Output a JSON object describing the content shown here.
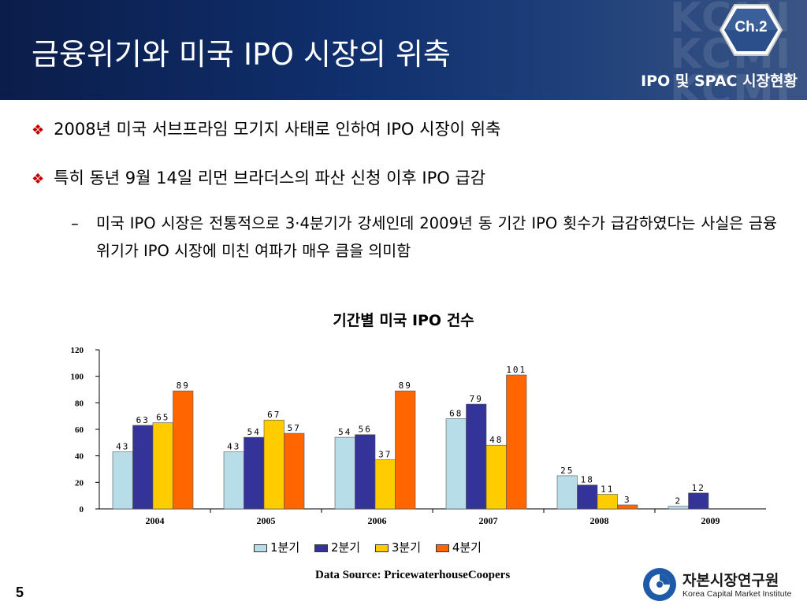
{
  "header": {
    "title": "금융위기와 미국 IPO 시장의 위축",
    "subtitle": "IPO 및 SPAC 시장현황",
    "chapter": "Ch.2",
    "watermark": "KCMI",
    "background_color": "#10306e"
  },
  "bullets": [
    {
      "icon": "diamond-bullet-icon",
      "text": "2008년 미국 서브프라임 모기지 사태로 인하여 IPO 시장이 위축"
    },
    {
      "icon": "diamond-bullet-icon",
      "text": "특히 동년 9월 14일 리먼 브라더스의 파산 신청 이후 IPO 급감"
    }
  ],
  "sub_bullet": {
    "dash": "–",
    "text": "미국 IPO 시장은 전통적으로 3·4분기가 강세인데 2009년 동 기간 IPO 횟수가 급감하였다는 사실은 금융위기가 IPO 시장에 미친 여파가 매우 큼을 의미함"
  },
  "chart_data": {
    "type": "bar",
    "title": "기간별 미국 IPO 건수",
    "categories": [
      "2004",
      "2005",
      "2006",
      "2007",
      "2008",
      "2009"
    ],
    "series": [
      {
        "name": "1분기",
        "color": "#b7dde8",
        "values": [
          43,
          43,
          54,
          68,
          25,
          2
        ]
      },
      {
        "name": "2분기",
        "color": "#333399",
        "values": [
          63,
          54,
          56,
          79,
          18,
          12
        ]
      },
      {
        "name": "3분기",
        "color": "#ffcc00",
        "values": [
          65,
          67,
          37,
          48,
          11,
          null
        ]
      },
      {
        "name": "4분기",
        "color": "#ff6600",
        "values": [
          89,
          57,
          89,
          101,
          3,
          null
        ]
      }
    ],
    "ylim": [
      0,
      120
    ],
    "yticks": [
      0,
      20,
      40,
      60,
      80,
      100,
      120
    ],
    "legend": "bottom",
    "grid": false,
    "xlabel": "",
    "ylabel": ""
  },
  "source": "Data Source: PricewaterhouseCoopers",
  "page_number": "5",
  "logo": {
    "name_ko": "자본시장연구원",
    "name_en": "Korea Capital Market Institute",
    "colors": [
      "#1e5aa8",
      "#ffffff"
    ]
  }
}
